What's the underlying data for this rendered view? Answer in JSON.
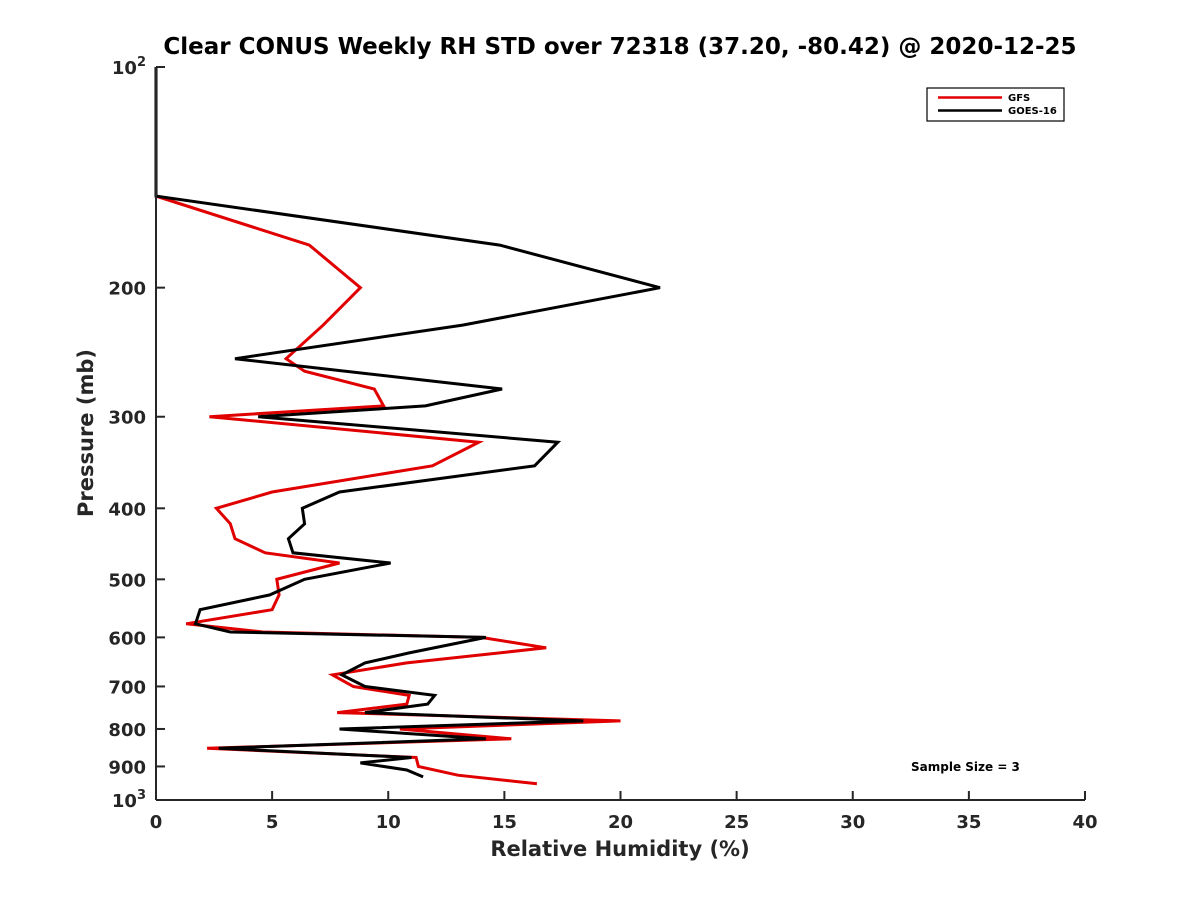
{
  "chart_data": {
    "type": "line",
    "title": "Clear CONUS Weekly RH STD over 72318 (37.20, -80.42) @ 2020-12-25",
    "xlabel": "Relative Humidity (%)",
    "ylabel": "Pressure (mb)",
    "xlim": [
      0,
      40
    ],
    "ylim": [
      100,
      1000
    ],
    "y_scale": "log",
    "y_reversed": true,
    "x_ticks": [
      "0",
      "5",
      "10",
      "15",
      "20",
      "25",
      "30",
      "35",
      "40"
    ],
    "y_ticks": [
      {
        "value": 100,
        "label": "10",
        "exp": "2"
      },
      {
        "value": 200,
        "label": "200"
      },
      {
        "value": 300,
        "label": "300"
      },
      {
        "value": 400,
        "label": "400"
      },
      {
        "value": 500,
        "label": "500"
      },
      {
        "value": 600,
        "label": "600"
      },
      {
        "value": 700,
        "label": "700"
      },
      {
        "value": 800,
        "label": "800"
      },
      {
        "value": 900,
        "label": "900"
      },
      {
        "value": 1000,
        "label": "10",
        "exp": "3"
      }
    ],
    "grid": false,
    "legend_position": "top-right",
    "annotation": "Sample Size = 3",
    "series": [
      {
        "name": "GFS",
        "color": "#e00000",
        "points": [
          [
            0,
            100
          ],
          [
            0,
            150
          ],
          [
            6.6,
            175
          ],
          [
            8.8,
            200
          ],
          [
            7.2,
            225
          ],
          [
            5.6,
            250
          ],
          [
            6.4,
            260
          ],
          [
            9.4,
            275
          ],
          [
            9.8,
            290
          ],
          [
            2.3,
            300
          ],
          [
            13.9,
            325
          ],
          [
            11.9,
            350
          ],
          [
            5.0,
            380
          ],
          [
            2.6,
            400
          ],
          [
            3.2,
            420
          ],
          [
            3.4,
            440
          ],
          [
            4.7,
            460
          ],
          [
            7.9,
            475
          ],
          [
            5.2,
            500
          ],
          [
            5.3,
            525
          ],
          [
            5.0,
            550
          ],
          [
            1.3,
            575
          ],
          [
            4.6,
            590
          ],
          [
            14.0,
            600
          ],
          [
            16.8,
            620
          ],
          [
            10.8,
            650
          ],
          [
            7.6,
            675
          ],
          [
            8.5,
            700
          ],
          [
            10.9,
            720
          ],
          [
            10.8,
            740
          ],
          [
            7.8,
            760
          ],
          [
            20.0,
            780
          ],
          [
            10.5,
            800
          ],
          [
            15.3,
            825
          ],
          [
            2.2,
            850
          ],
          [
            11.2,
            875
          ],
          [
            11.3,
            900
          ],
          [
            13.0,
            925
          ],
          [
            16.4,
            950
          ]
        ]
      },
      {
        "name": "GOES-16",
        "color": "#000000",
        "points": [
          [
            0,
            100
          ],
          [
            0,
            150
          ],
          [
            14.8,
            175
          ],
          [
            21.7,
            200
          ],
          [
            13.2,
            225
          ],
          [
            3.4,
            250
          ],
          [
            14.9,
            275
          ],
          [
            11.6,
            290
          ],
          [
            4.4,
            300
          ],
          [
            17.3,
            325
          ],
          [
            16.3,
            350
          ],
          [
            7.9,
            380
          ],
          [
            6.3,
            400
          ],
          [
            6.4,
            420
          ],
          [
            5.7,
            440
          ],
          [
            5.9,
            460
          ],
          [
            10.1,
            475
          ],
          [
            6.4,
            500
          ],
          [
            4.9,
            525
          ],
          [
            1.9,
            550
          ],
          [
            1.7,
            575
          ],
          [
            3.2,
            590
          ],
          [
            14.2,
            600
          ],
          [
            10.9,
            630
          ],
          [
            9.0,
            650
          ],
          [
            8.0,
            675
          ],
          [
            9.0,
            700
          ],
          [
            12.0,
            720
          ],
          [
            11.7,
            740
          ],
          [
            9.0,
            760
          ],
          [
            18.4,
            780
          ],
          [
            7.9,
            800
          ],
          [
            14.2,
            825
          ],
          [
            2.7,
            850
          ],
          [
            11.0,
            875
          ],
          [
            8.8,
            890
          ],
          [
            10.8,
            910
          ],
          [
            11.5,
            930
          ]
        ]
      }
    ]
  }
}
